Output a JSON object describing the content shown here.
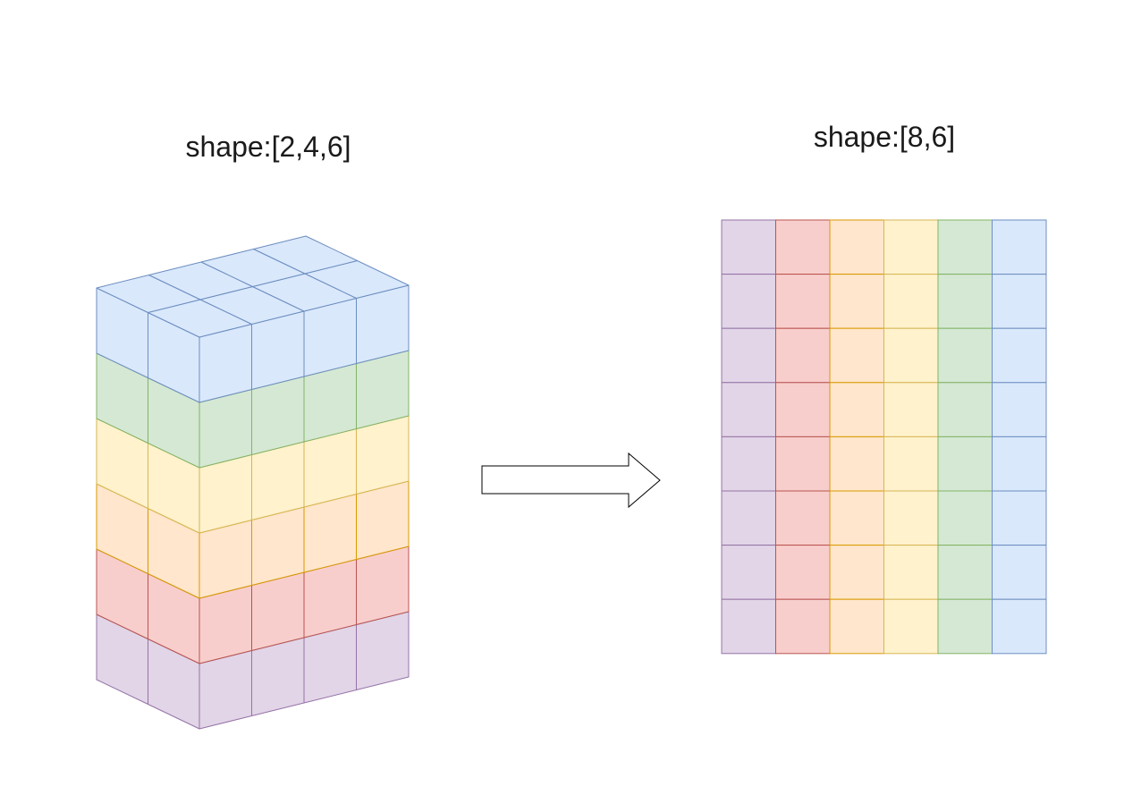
{
  "source": {
    "label": "shape:[2,4,6]",
    "shape": [
      2,
      4,
      6
    ]
  },
  "target": {
    "label": "shape:[8,6]",
    "shape": [
      8,
      6
    ]
  },
  "layers": [
    {
      "fill": "#e1d5e7",
      "stroke": "#9673a6"
    },
    {
      "fill": "#f8cecc",
      "stroke": "#b85450"
    },
    {
      "fill": "#ffe6cc",
      "stroke": "#d79b00"
    },
    {
      "fill": "#fff2cc",
      "stroke": "#d6b656"
    },
    {
      "fill": "#d5e8d4",
      "stroke": "#82b366"
    },
    {
      "fill": "#dae8fc",
      "stroke": "#6c8ebf"
    }
  ],
  "arrow": {
    "fill": "#ffffff",
    "stroke": "#000000"
  }
}
